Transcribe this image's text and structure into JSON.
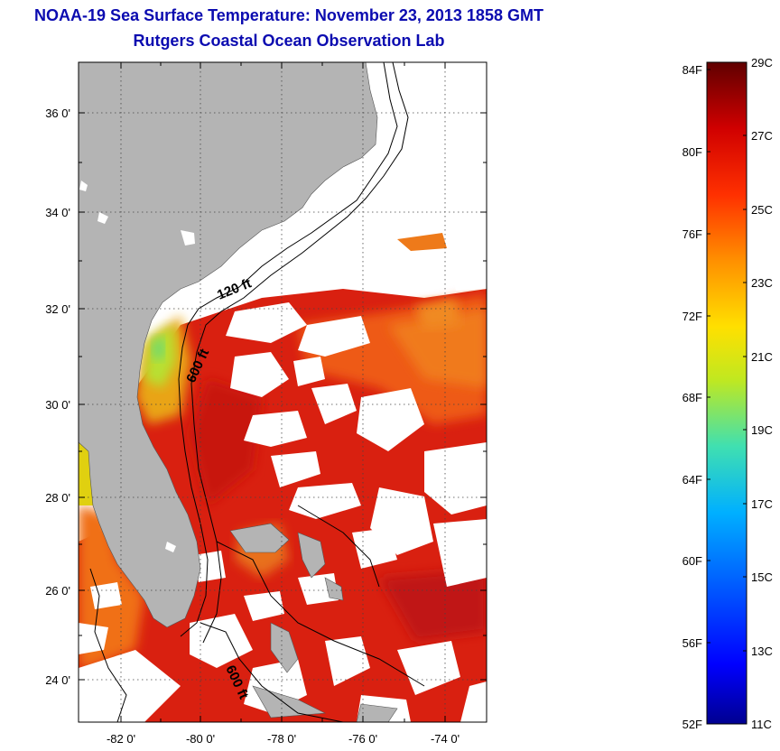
{
  "header": {
    "title": "NOAA-19 Sea Surface Temperature:  November 23, 2013 1858 GMT",
    "subtitle": "Rutgers Coastal Ocean Observation Lab"
  },
  "map": {
    "lat_ticks": [
      "36 0'",
      "34 0'",
      "32 0'",
      "30 0'",
      "28 0'",
      "26 0'",
      "24 0'"
    ],
    "lon_ticks": [
      "-82 0'",
      "-80 0'",
      "-78 0'",
      "-76 0'",
      "-74 0'"
    ],
    "isobaths": [
      "120 ft",
      "600 ft",
      "600 ft"
    ],
    "colors": {
      "land": "#b4b4b4",
      "cloud": "#ffffff",
      "warm": "#d91f0a",
      "orange": "#f07010",
      "yellow": "#e8e010"
    }
  },
  "colorbar": {
    "f_labels": [
      "84F",
      "80F",
      "76F",
      "72F",
      "68F",
      "64F",
      "60F",
      "56F",
      "52F"
    ],
    "c_labels": [
      "29C",
      "27C",
      "25C",
      "23C",
      "21C",
      "19C",
      "17C",
      "15C",
      "13C",
      "11C"
    ]
  }
}
